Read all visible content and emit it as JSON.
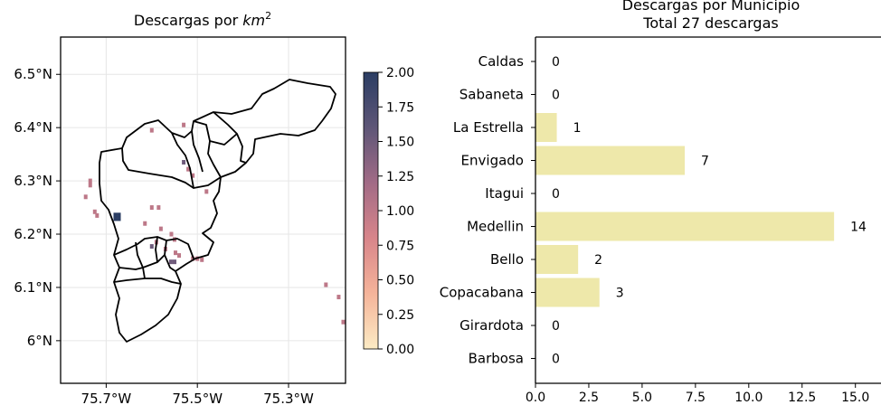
{
  "chart_data": [
    {
      "type": "heatmap",
      "title_prefix": "Descargas por ",
      "title_unit": "km",
      "title_exp": "2",
      "x_ticks": [
        {
          "value": -75.7,
          "label": "75.7°W"
        },
        {
          "value": -75.5,
          "label": "75.5°W"
        },
        {
          "value": -75.3,
          "label": "75.3°W"
        }
      ],
      "y_ticks": [
        {
          "value": 6.0,
          "label": "6°N"
        },
        {
          "value": 6.1,
          "label": "6.1°N"
        },
        {
          "value": 6.2,
          "label": "6.2°N"
        },
        {
          "value": 6.3,
          "label": "6.3°N"
        },
        {
          "value": 6.4,
          "label": "6.4°N"
        },
        {
          "value": 6.5,
          "label": "6.5°N"
        }
      ],
      "xlim": [
        -75.8,
        -75.175
      ],
      "ylim": [
        5.92,
        6.57
      ],
      "grid": true,
      "colorbar": {
        "ticks": [
          "0.00",
          "0.25",
          "0.50",
          "0.75",
          "1.00",
          "1.25",
          "1.50",
          "1.75",
          "2.00"
        ],
        "vmin": 0,
        "vmax": 2,
        "colors": [
          "#fcebc4",
          "#f5b49a",
          "#d8858a",
          "#a26b86",
          "#5e5677",
          "#2b3d63"
        ]
      },
      "cells": [
        {
          "lon": -75.6,
          "lat": 6.395,
          "value": 1.0
        },
        {
          "lon": -75.53,
          "lat": 6.405,
          "value": 1.0
        },
        {
          "lon": -75.53,
          "lat": 6.335,
          "value": 1.5
        },
        {
          "lon": -75.52,
          "lat": 6.322,
          "value": 1.0
        },
        {
          "lon": -75.51,
          "lat": 6.31,
          "value": 1.0
        },
        {
          "lon": -75.48,
          "lat": 6.28,
          "value": 1.0
        },
        {
          "lon": -75.735,
          "lat": 6.3,
          "value": 1.0
        },
        {
          "lon": -75.735,
          "lat": 6.292,
          "value": 1.0
        },
        {
          "lon": -75.745,
          "lat": 6.27,
          "value": 1.0
        },
        {
          "lon": -75.725,
          "lat": 6.242,
          "value": 1.0
        },
        {
          "lon": -75.72,
          "lat": 6.235,
          "value": 1.0
        },
        {
          "lon": -75.68,
          "lat": 6.236,
          "value": 2.0
        },
        {
          "lon": -75.672,
          "lat": 6.236,
          "value": 2.0
        },
        {
          "lon": -75.68,
          "lat": 6.229,
          "value": 2.0
        },
        {
          "lon": -75.672,
          "lat": 6.229,
          "value": 2.0
        },
        {
          "lon": -75.6,
          "lat": 6.25,
          "value": 1.0
        },
        {
          "lon": -75.585,
          "lat": 6.25,
          "value": 1.0
        },
        {
          "lon": -75.615,
          "lat": 6.22,
          "value": 1.0
        },
        {
          "lon": -75.58,
          "lat": 6.21,
          "value": 1.0
        },
        {
          "lon": -75.59,
          "lat": 6.185,
          "value": 1.0
        },
        {
          "lon": -75.557,
          "lat": 6.2,
          "value": 1.0
        },
        {
          "lon": -75.55,
          "lat": 6.19,
          "value": 1.0
        },
        {
          "lon": -75.6,
          "lat": 6.177,
          "value": 1.5
        },
        {
          "lon": -75.57,
          "lat": 6.172,
          "value": 1.0
        },
        {
          "lon": -75.548,
          "lat": 6.165,
          "value": 1.0
        },
        {
          "lon": -75.54,
          "lat": 6.16,
          "value": 1.0
        },
        {
          "lon": -75.558,
          "lat": 6.148,
          "value": 1.5
        },
        {
          "lon": -75.55,
          "lat": 6.148,
          "value": 1.5
        },
        {
          "lon": -75.51,
          "lat": 6.154,
          "value": 1.0
        },
        {
          "lon": -75.5,
          "lat": 6.154,
          "value": 1.0
        },
        {
          "lon": -75.49,
          "lat": 6.152,
          "value": 1.0
        },
        {
          "lon": -75.218,
          "lat": 6.105,
          "value": 1.0
        },
        {
          "lon": -75.19,
          "lat": 6.082,
          "value": 1.0
        },
        {
          "lon": -75.18,
          "lat": 6.035,
          "value": 1.0
        }
      ]
    },
    {
      "type": "bar",
      "orientation": "horizontal",
      "title_line1": "Descargas por Municipio",
      "title_line2": "Total 27 descargas",
      "categories": [
        "Caldas",
        "Sabaneta",
        "La Estrella",
        "Envigado",
        "Itagui",
        "Medellin",
        "Bello",
        "Copacabana",
        "Girardota",
        "Barbosa"
      ],
      "values": [
        0,
        0,
        1,
        7,
        0,
        14,
        2,
        3,
        0,
        0
      ],
      "value_labels": [
        "0",
        "0",
        "1",
        "7",
        "0",
        "14",
        "2",
        "3",
        "0",
        "0"
      ],
      "x_ticks": [
        "0.0",
        "2.5",
        "5.0",
        "7.5",
        "10.0",
        "12.5",
        "15.0"
      ],
      "x_tick_values": [
        0,
        2.5,
        5,
        7.5,
        10,
        12.5,
        15
      ],
      "xlim": [
        0,
        16.2
      ],
      "bar_color": "#eee8aa"
    }
  ]
}
